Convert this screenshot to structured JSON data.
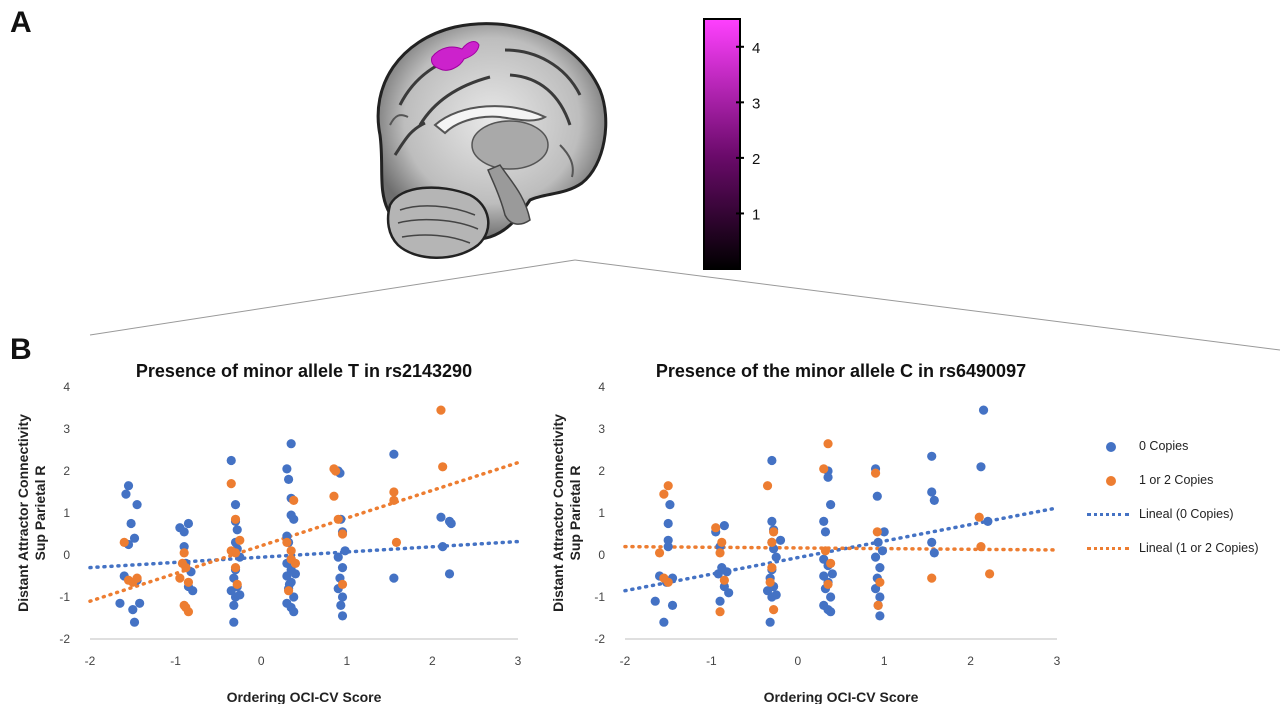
{
  "panel_labels": {
    "a": "A",
    "b": "B"
  },
  "colors": {
    "blue": "#4472c4",
    "orange": "#ed7d31",
    "cluster": "#cc22cc"
  },
  "colorbar": {
    "ticks": [
      "4",
      "3",
      "2",
      "1"
    ],
    "min": 0,
    "max": 4.5
  },
  "legend": {
    "series1": "0 Copies",
    "series2": "1 or 2 Copies",
    "trend1": "Lineal (0 Copies)",
    "trend2": "Lineal (1 or 2 Copies)"
  },
  "chart_data": [
    {
      "type": "scatter",
      "title": "Presence of minor allele T in rs2143290",
      "xlabel": "Ordering OCI-CV Score",
      "ylabel": "Distant Attractor Connectivity Sup Parietal R",
      "xlim": [
        -2,
        3
      ],
      "ylim": [
        -2,
        4
      ],
      "xticks": [
        "-2",
        "-1",
        "0",
        "1",
        "2",
        "3"
      ],
      "yticks": [
        "-2",
        "-1",
        "0",
        "1",
        "2",
        "3",
        "4"
      ],
      "series": [
        {
          "name": "0 Copies",
          "color": "#4472c4",
          "points": [
            [
              -1.65,
              -1.15
            ],
            [
              -1.6,
              -0.5
            ],
            [
              -1.58,
              1.45
            ],
            [
              -1.55,
              1.65
            ],
            [
              -1.55,
              0.25
            ],
            [
              -1.52,
              0.75
            ],
            [
              -1.5,
              -1.3
            ],
            [
              -1.48,
              -1.6
            ],
            [
              -1.48,
              0.4
            ],
            [
              -1.45,
              1.2
            ],
            [
              -1.42,
              -1.15
            ],
            [
              -1.45,
              -0.6
            ],
            [
              -0.95,
              0.65
            ],
            [
              -0.9,
              0.55
            ],
            [
              -0.88,
              -0.2
            ],
            [
              -0.85,
              0.75
            ],
            [
              -0.85,
              -0.75
            ],
            [
              -0.82,
              -0.4
            ],
            [
              -0.8,
              -0.85
            ],
            [
              -0.9,
              0.2
            ],
            [
              -0.35,
              2.25
            ],
            [
              -0.35,
              -0.85
            ],
            [
              -0.32,
              -1.6
            ],
            [
              -0.3,
              1.2
            ],
            [
              -0.3,
              0.8
            ],
            [
              -0.28,
              0.6
            ],
            [
              -0.3,
              0.3
            ],
            [
              -0.28,
              0.15
            ],
            [
              -0.3,
              0.1
            ],
            [
              -0.25,
              -0.05
            ],
            [
              -0.3,
              -0.35
            ],
            [
              -0.32,
              -0.55
            ],
            [
              -0.28,
              -0.75
            ],
            [
              -0.3,
              -1.0
            ],
            [
              -0.32,
              -1.2
            ],
            [
              -0.25,
              -0.95
            ],
            [
              0.3,
              2.05
            ],
            [
              0.35,
              2.65
            ],
            [
              0.32,
              1.8
            ],
            [
              0.35,
              1.35
            ],
            [
              0.35,
              0.95
            ],
            [
              0.38,
              0.85
            ],
            [
              0.3,
              0.45
            ],
            [
              0.32,
              0.3
            ],
            [
              0.35,
              -0.1
            ],
            [
              0.3,
              -0.2
            ],
            [
              0.35,
              -0.35
            ],
            [
              0.3,
              -0.5
            ],
            [
              0.35,
              -0.65
            ],
            [
              0.32,
              -0.8
            ],
            [
              0.38,
              -1.0
            ],
            [
              0.3,
              -1.15
            ],
            [
              0.35,
              -1.25
            ],
            [
              0.38,
              -1.35
            ],
            [
              0.33,
              -0.7
            ],
            [
              0.4,
              -0.45
            ],
            [
              0.9,
              2.0
            ],
            [
              0.92,
              1.95
            ],
            [
              0.93,
              0.85
            ],
            [
              0.95,
              0.55
            ],
            [
              0.98,
              0.1
            ],
            [
              0.9,
              -0.05
            ],
            [
              0.95,
              -0.3
            ],
            [
              0.92,
              -0.55
            ],
            [
              0.9,
              -0.8
            ],
            [
              0.95,
              -1.0
            ],
            [
              0.93,
              -1.2
            ],
            [
              0.95,
              -1.45
            ],
            [
              1.55,
              2.4
            ],
            [
              1.55,
              -0.55
            ],
            [
              2.1,
              0.9
            ],
            [
              2.12,
              0.2
            ],
            [
              2.2,
              0.8
            ],
            [
              2.22,
              0.75
            ],
            [
              2.2,
              -0.45
            ]
          ]
        },
        {
          "name": "1 or 2 Copies",
          "color": "#ed7d31",
          "points": [
            [
              -1.6,
              0.3
            ],
            [
              -1.55,
              -0.6
            ],
            [
              -1.5,
              -0.65
            ],
            [
              -1.45,
              -0.55
            ],
            [
              -0.95,
              -0.55
            ],
            [
              -0.9,
              0.05
            ],
            [
              -0.88,
              -0.3
            ],
            [
              -0.85,
              -0.65
            ],
            [
              -0.9,
              -1.2
            ],
            [
              -0.88,
              -1.25
            ],
            [
              -0.85,
              -1.35
            ],
            [
              -0.92,
              -0.2
            ],
            [
              -0.35,
              1.7
            ],
            [
              -0.3,
              0.85
            ],
            [
              -0.3,
              0.05
            ],
            [
              -0.25,
              0.35
            ],
            [
              -0.28,
              -0.7
            ],
            [
              -0.35,
              0.1
            ],
            [
              -0.3,
              -0.3
            ],
            [
              0.3,
              0.3
            ],
            [
              0.35,
              0.1
            ],
            [
              0.38,
              1.3
            ],
            [
              0.32,
              -0.85
            ],
            [
              0.35,
              -0.1
            ],
            [
              0.4,
              -0.2
            ],
            [
              0.85,
              2.05
            ],
            [
              0.87,
              2.0
            ],
            [
              0.85,
              1.4
            ],
            [
              0.9,
              0.85
            ],
            [
              0.95,
              0.5
            ],
            [
              0.95,
              -0.7
            ],
            [
              1.55,
              1.5
            ],
            [
              1.55,
              1.3
            ],
            [
              1.58,
              0.3
            ],
            [
              2.1,
              3.45
            ],
            [
              2.12,
              2.1
            ]
          ]
        }
      ],
      "trendlines": [
        {
          "name": "Lineal (0 Copies)",
          "color": "#4472c4",
          "from": [
            -2,
            -0.3
          ],
          "to": [
            3,
            0.32
          ]
        },
        {
          "name": "Lineal (1 or 2 Copies)",
          "color": "#ed7d31",
          "from": [
            -2,
            -1.1
          ],
          "to": [
            3,
            2.2
          ]
        }
      ]
    },
    {
      "type": "scatter",
      "title": "Presence of the minor allele C in rs6490097",
      "xlabel": "Ordering OCI-CV Score",
      "ylabel": "Distant Attractor Connectivity Sup Parietal R",
      "xlim": [
        -2,
        3
      ],
      "ylim": [
        -2,
        4
      ],
      "xticks": [
        "-2",
        "-1",
        "0",
        "1",
        "2",
        "3"
      ],
      "yticks": [
        "-2",
        "-1",
        "0",
        "1",
        "2",
        "3",
        "4"
      ],
      "series": [
        {
          "name": "0 Copies",
          "color": "#4472c4",
          "points": [
            [
              -1.65,
              -1.1
            ],
            [
              -1.6,
              -0.5
            ],
            [
              -1.55,
              -1.6
            ],
            [
              -1.5,
              0.75
            ],
            [
              -1.5,
              0.2
            ],
            [
              -1.48,
              1.2
            ],
            [
              -1.45,
              -1.2
            ],
            [
              -1.52,
              -0.65
            ],
            [
              -1.5,
              0.35
            ],
            [
              -1.45,
              -0.55
            ],
            [
              -0.95,
              0.55
            ],
            [
              -0.9,
              0.2
            ],
            [
              -0.88,
              -0.3
            ],
            [
              -0.85,
              0.7
            ],
            [
              -0.85,
              -0.75
            ],
            [
              -0.82,
              -0.4
            ],
            [
              -0.8,
              -0.9
            ],
            [
              -0.9,
              -1.1
            ],
            [
              -0.92,
              -0.45
            ],
            [
              -0.3,
              2.25
            ],
            [
              -0.35,
              -0.85
            ],
            [
              -0.32,
              -1.6
            ],
            [
              -0.3,
              0.8
            ],
            [
              -0.28,
              0.6
            ],
            [
              -0.3,
              0.3
            ],
            [
              -0.28,
              0.15
            ],
            [
              -0.25,
              -0.05
            ],
            [
              -0.3,
              -0.35
            ],
            [
              -0.32,
              -0.55
            ],
            [
              -0.28,
              -0.75
            ],
            [
              -0.3,
              -1.0
            ],
            [
              -0.25,
              -0.95
            ],
            [
              -0.2,
              0.35
            ],
            [
              0.3,
              0.8
            ],
            [
              0.32,
              0.55
            ],
            [
              0.35,
              2.0
            ],
            [
              0.35,
              1.85
            ],
            [
              0.38,
              1.2
            ],
            [
              0.3,
              -0.1
            ],
            [
              0.35,
              -0.25
            ],
            [
              0.3,
              -0.5
            ],
            [
              0.35,
              -0.65
            ],
            [
              0.32,
              -0.8
            ],
            [
              0.38,
              -1.0
            ],
            [
              0.3,
              -1.2
            ],
            [
              0.35,
              -1.3
            ],
            [
              0.38,
              -1.35
            ],
            [
              0.4,
              -0.45
            ],
            [
              0.9,
              2.05
            ],
            [
              0.92,
              1.4
            ],
            [
              0.93,
              0.3
            ],
            [
              0.98,
              0.1
            ],
            [
              0.9,
              -0.05
            ],
            [
              0.95,
              -0.3
            ],
            [
              0.92,
              -0.55
            ],
            [
              0.9,
              -0.8
            ],
            [
              0.95,
              -1.0
            ],
            [
              0.93,
              -1.2
            ],
            [
              0.95,
              -1.45
            ],
            [
              1.0,
              0.55
            ],
            [
              1.55,
              2.35
            ],
            [
              1.55,
              1.5
            ],
            [
              1.58,
              1.3
            ],
            [
              1.55,
              0.3
            ],
            [
              1.58,
              0.05
            ],
            [
              2.15,
              3.45
            ],
            [
              2.12,
              2.1
            ],
            [
              2.2,
              0.8
            ]
          ]
        },
        {
          "name": "1 or 2 Copies",
          "color": "#ed7d31",
          "points": [
            [
              -1.55,
              1.45
            ],
            [
              -1.5,
              1.65
            ],
            [
              -1.6,
              0.05
            ],
            [
              -1.55,
              -0.55
            ],
            [
              -1.5,
              -0.65
            ],
            [
              -0.95,
              0.65
            ],
            [
              -0.9,
              0.05
            ],
            [
              -0.88,
              0.3
            ],
            [
              -0.85,
              -0.6
            ],
            [
              -0.9,
              -1.35
            ],
            [
              -0.35,
              1.65
            ],
            [
              -0.3,
              0.3
            ],
            [
              -0.28,
              0.55
            ],
            [
              -0.3,
              -0.3
            ],
            [
              -0.32,
              -0.65
            ],
            [
              -0.28,
              -1.3
            ],
            [
              0.3,
              2.05
            ],
            [
              0.35,
              2.65
            ],
            [
              0.32,
              0.1
            ],
            [
              0.38,
              -0.2
            ],
            [
              0.35,
              -0.7
            ],
            [
              0.9,
              1.95
            ],
            [
              0.92,
              0.55
            ],
            [
              0.95,
              -0.65
            ],
            [
              0.93,
              -1.2
            ],
            [
              1.55,
              -0.55
            ],
            [
              2.1,
              0.9
            ],
            [
              2.12,
              0.2
            ],
            [
              2.22,
              -0.45
            ]
          ]
        }
      ],
      "trendlines": [
        {
          "name": "Lineal (0 Copies)",
          "color": "#4472c4",
          "from": [
            -2,
            -0.85
          ],
          "to": [
            3,
            1.12
          ]
        },
        {
          "name": "Lineal (1 or 2 Copies)",
          "color": "#ed7d31",
          "from": [
            -2,
            0.2
          ],
          "to": [
            3,
            0.12
          ]
        }
      ]
    }
  ]
}
